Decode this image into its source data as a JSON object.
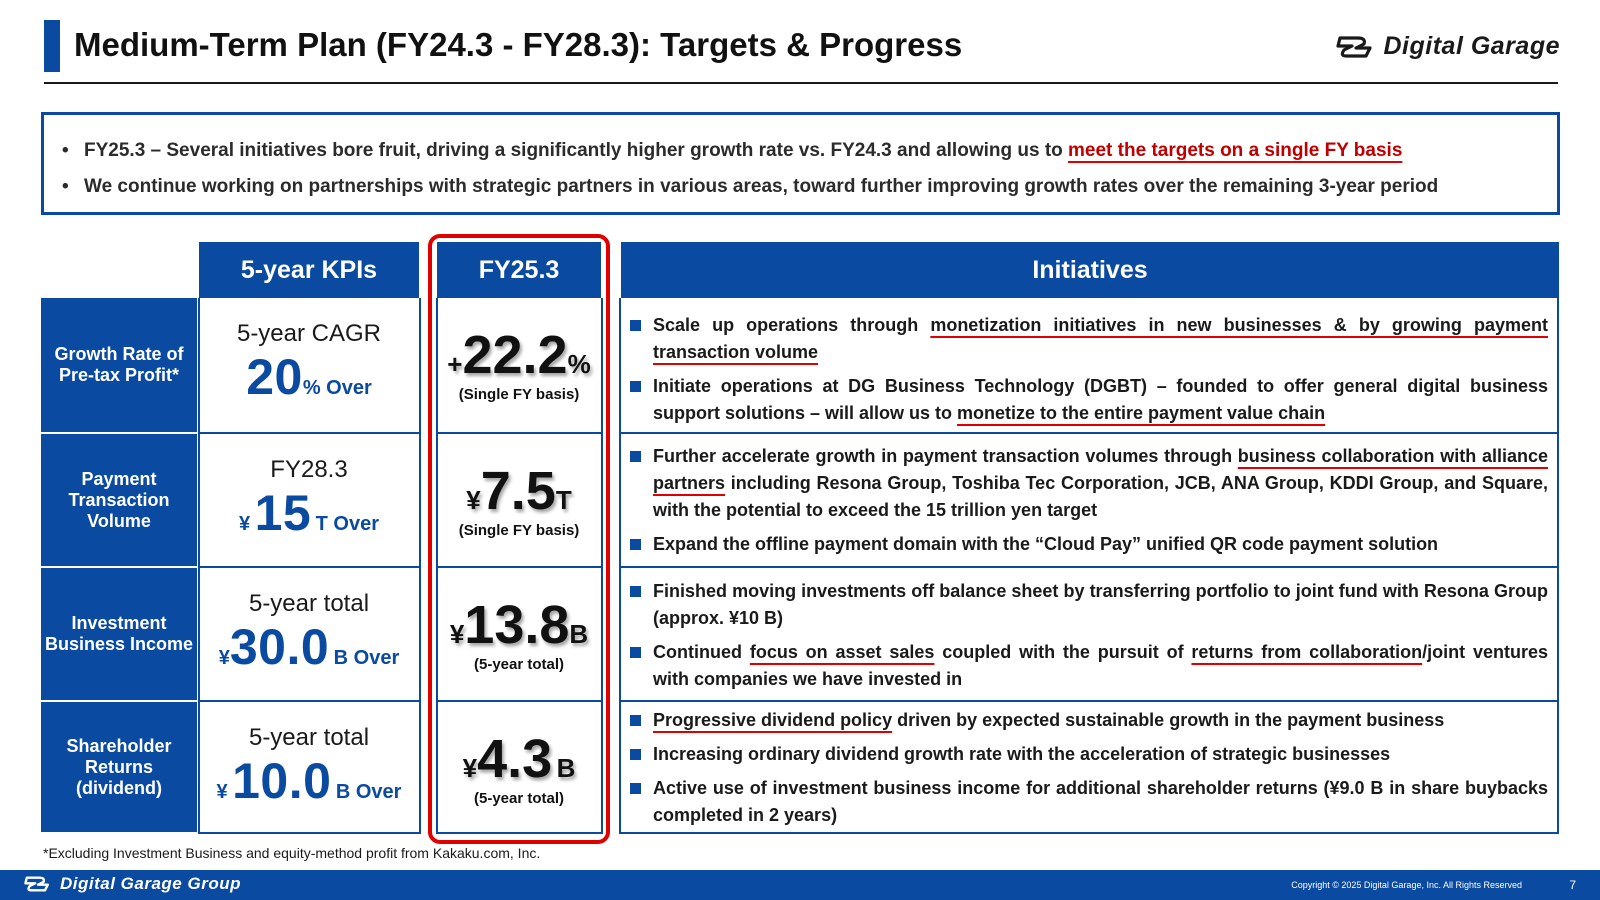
{
  "header": {
    "title": "Medium-Term Plan (FY24.3 - FY28.3): Targets & Progress",
    "logo_text": "Digital Garage"
  },
  "summary": {
    "line1_pre": "FY25.3 – Several initiatives bore fruit, driving a significantly higher growth rate vs. FY24.3 and allowing us to ",
    "line1_highlight": "meet the targets on a single FY basis",
    "line2": "We continue working on partnerships with strategic partners in various areas, toward further improving growth rates over the remaining 3-year period"
  },
  "table": {
    "headers": {
      "kpis": "5-year KPIs",
      "fy": "FY25.3",
      "initiatives": "Initiatives"
    },
    "rows": [
      {
        "label": "Growth Rate of Pre-tax Profit*",
        "kpi_top": "5-year CAGR",
        "kpi_prefix": "",
        "kpi_value": "20",
        "kpi_suffix": "% Over",
        "fy_prefix": "+",
        "fy_value": "22.2",
        "fy_suffix": "%",
        "fy_note": "(Single FY basis)",
        "init": [
          {
            "pre": "Scale up operations through ",
            "u": "monetization initiatives in new businesses & by growing payment transaction volume",
            "mid": "",
            "u2": "",
            "post": ""
          },
          {
            "pre": "Initiate operations at DG Business Technology (DGBT) – founded to offer general digital business support solutions – will allow us to ",
            "u": "monetize to the entire payment value chain",
            "mid": "",
            "u2": "",
            "post": ""
          }
        ]
      },
      {
        "label": "Payment Transaction Volume",
        "kpi_top": "FY28.3",
        "kpi_prefix": "¥",
        "kpi_value": "15",
        "kpi_suffix": "T Over",
        "fy_prefix": "¥",
        "fy_value": "7.5",
        "fy_suffix": "T",
        "fy_note": "(Single FY basis)",
        "init": [
          {
            "pre": "Further accelerate growth in payment transaction volumes through ",
            "u": "business collaboration with alliance partners",
            "mid": " including Resona Group, Toshiba Tec Corporation, JCB, ANA Group, KDDI Group, and Square, with the potential to exceed the 15 trillion yen target",
            "u2": "",
            "post": ""
          },
          {
            "pre": "Expand the offline payment domain with the “Cloud Pay” unified QR code payment solution",
            "u": "",
            "mid": "",
            "u2": "",
            "post": ""
          }
        ]
      },
      {
        "label": "Investment Business Income",
        "kpi_top": "5-year total",
        "kpi_prefix": "¥",
        "kpi_value": "30.0",
        "kpi_suffix": "B Over",
        "fy_prefix": "¥",
        "fy_value": "13.8",
        "fy_suffix": "B",
        "fy_note": "(5-year total)",
        "init": [
          {
            "pre": "Finished moving investments off balance sheet by transferring portfolio to joint fund with Resona Group (approx. ¥10 B)",
            "u": "",
            "mid": "",
            "u2": "",
            "post": ""
          },
          {
            "pre": "Continued ",
            "u": "focus on asset sales",
            "mid": " coupled with the pursuit of ",
            "u2": "returns from collaboration",
            "post": "/joint ventures with companies we have invested in"
          }
        ]
      },
      {
        "label": "Shareholder Returns (dividend)",
        "kpi_top": "5-year total",
        "kpi_prefix": "¥",
        "kpi_value": "10.0",
        "kpi_suffix": "B Over",
        "fy_prefix": "¥",
        "fy_value": "4.3",
        "fy_suffix": "B",
        "fy_note": "(5-year total)",
        "init": [
          {
            "pre": "",
            "u": "Progressive dividend policy",
            "mid": " driven by expected sustainable growth in the payment business",
            "u2": "",
            "post": ""
          },
          {
            "pre": "Increasing ordinary dividend growth rate with the acceleration of strategic businesses",
            "u": "",
            "mid": "",
            "u2": "",
            "post": ""
          },
          {
            "pre": "Active use of investment business income for additional shareholder returns (¥9.0 B in share buybacks completed in 2 years)",
            "u": "",
            "mid": "",
            "u2": "",
            "post": ""
          }
        ]
      }
    ]
  },
  "footnote": "*Excluding Investment Business and equity-method profit from Kakaku.com, Inc.",
  "footer": {
    "logo_text": "Digital Garage Group",
    "copyright": "Copyright © 2025 Digital Garage, Inc. All Rights Reserved",
    "page": "7"
  },
  "colors": {
    "brand_blue": "#0a4aa0",
    "highlight_red": "#e00000"
  }
}
